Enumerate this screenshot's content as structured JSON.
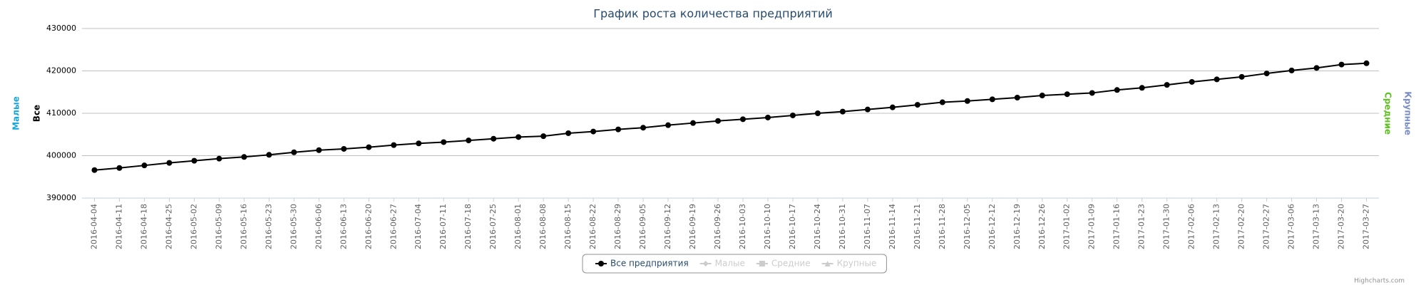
{
  "chart_data": {
    "type": "line",
    "title": "График роста количества предприятий",
    "categories": [
      "2016-04-04",
      "2016-04-11",
      "2016-04-18",
      "2016-04-25",
      "2016-05-02",
      "2016-05-09",
      "2016-05-16",
      "2016-05-23",
      "2016-05-30",
      "2016-06-06",
      "2016-06-13",
      "2016-06-20",
      "2016-06-27",
      "2016-07-04",
      "2016-07-11",
      "2016-07-18",
      "2016-07-25",
      "2016-08-01",
      "2016-08-08",
      "2016-08-15",
      "2016-08-22",
      "2016-08-29",
      "2016-09-05",
      "2016-09-12",
      "2016-09-19",
      "2016-09-26",
      "2016-10-03",
      "2016-10-10",
      "2016-10-17",
      "2016-10-24",
      "2016-10-31",
      "2016-11-07",
      "2016-11-14",
      "2016-11-21",
      "2016-11-28",
      "2016-12-05",
      "2016-12-12",
      "2016-12-19",
      "2016-12-26",
      "2017-01-02",
      "2017-01-09",
      "2017-01-16",
      "2017-01-23",
      "2017-01-30",
      "2017-02-06",
      "2017-02-13",
      "2017-02-20",
      "2017-02-27",
      "2017-03-06",
      "2017-03-13",
      "2017-03-20",
      "2017-03-27"
    ],
    "series": [
      {
        "name": "Все предприятия",
        "color": "#000000",
        "visible": true,
        "symbol": "circle",
        "values": [
          396600,
          397100,
          397700,
          398300,
          398800,
          399300,
          399700,
          400200,
          400800,
          401300,
          401600,
          402000,
          402500,
          402900,
          403200,
          403600,
          404000,
          404400,
          404600,
          405300,
          405700,
          406200,
          406600,
          407200,
          407700,
          408200,
          408600,
          409000,
          409500,
          410000,
          410400,
          410900,
          411400,
          412000,
          412600,
          412900,
          413300,
          413700,
          414200,
          414500,
          414800,
          415500,
          416000,
          416700,
          417400,
          418000,
          418600,
          419400,
          420100,
          420700,
          421500,
          421800
        ]
      },
      {
        "name": "Малые",
        "color": "#1aa6d9",
        "visible": false,
        "symbol": "diamond"
      },
      {
        "name": "Средние",
        "color": "#5cc01e",
        "visible": false,
        "symbol": "square"
      },
      {
        "name": "Крупные",
        "color": "#7a8cc9",
        "visible": false,
        "symbol": "triangle"
      }
    ],
    "axis_titles": {
      "left": [
        {
          "text": "Малые",
          "color": "#1aa6d9"
        },
        {
          "text": "Все",
          "color": "#000000"
        }
      ],
      "right": [
        {
          "text": "Средние",
          "color": "#5cc01e"
        },
        {
          "text": "Крупные",
          "color": "#7a8cc9"
        }
      ]
    },
    "ylim": [
      390000,
      430000
    ],
    "yticks": [
      390000,
      400000,
      410000,
      420000,
      430000
    ],
    "grid": true,
    "legend": "bottom",
    "credits": "Highcharts.com"
  }
}
